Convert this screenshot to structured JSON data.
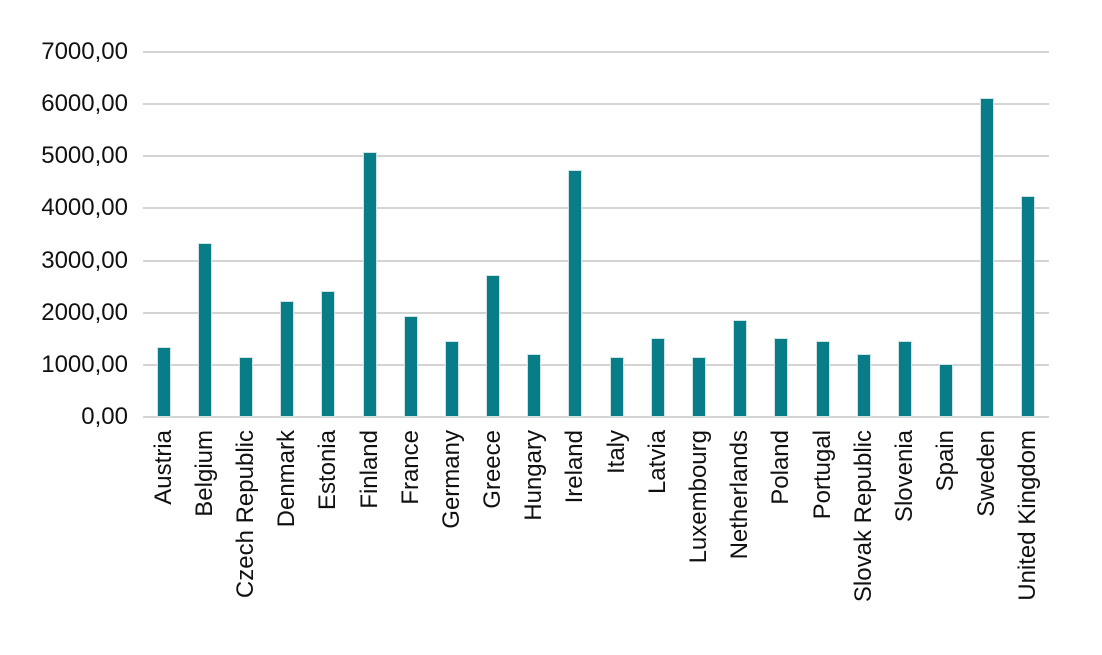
{
  "chart_data": {
    "type": "bar",
    "title": "",
    "xlabel": "",
    "ylabel": "",
    "categories": [
      "Austria",
      "Belgium",
      "Czech Republic",
      "Denmark",
      "Estonia",
      "Finland",
      "France",
      "Germany",
      "Greece",
      "Hungary",
      "Ireland",
      "Italy",
      "Latvia",
      "Luxembourg",
      "Netherlands",
      "Poland",
      "Portugal",
      "Slovak Republic",
      "Slovenia",
      "Spain",
      "Sweden",
      "United Kingdom"
    ],
    "values": [
      1340,
      3330,
      1160,
      2230,
      2410,
      5080,
      1930,
      1450,
      2720,
      1210,
      4730,
      1150,
      1510,
      1160,
      1860,
      1510,
      1460,
      1210,
      1460,
      1020,
      6110,
      4240
    ],
    "ylim": [
      0,
      7000
    ],
    "ytick_values": [
      0,
      1000,
      2000,
      3000,
      4000,
      5000,
      6000,
      7000
    ],
    "ytick_labels": [
      "0,00",
      "1000,00",
      "2000,00",
      "3000,00",
      "4000,00",
      "5000,00",
      "6000,00",
      "7000,00"
    ],
    "grid": true,
    "legend_position": "none",
    "bar_color": "#087d87",
    "gridline_color": "#d4d4d4",
    "text_color": "#111111"
  }
}
